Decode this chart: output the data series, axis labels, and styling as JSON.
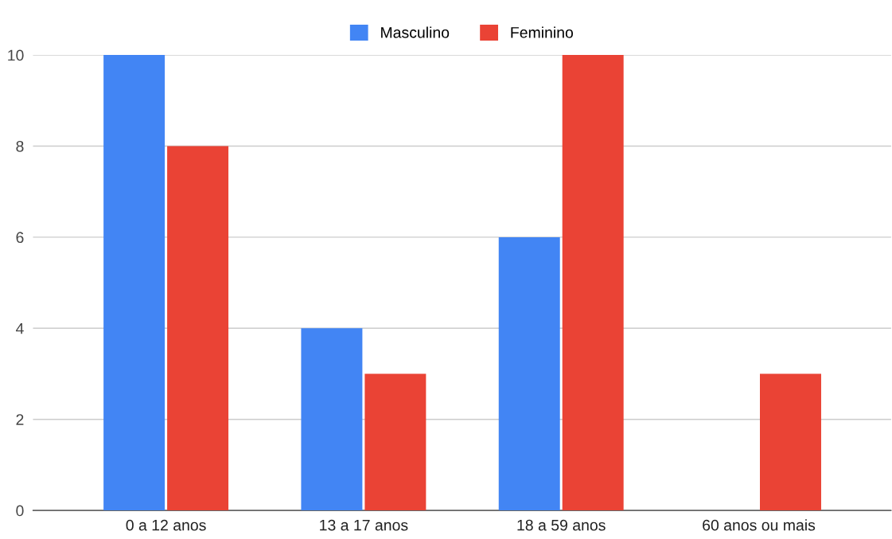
{
  "chart_data": {
    "type": "bar",
    "categories": [
      "0 a 12 anos",
      "13 a 17 anos",
      "18 a 59 anos",
      "60 anos ou mais"
    ],
    "series": [
      {
        "name": "Masculino",
        "color": "#4285f4",
        "values": [
          10,
          4,
          6,
          0
        ]
      },
      {
        "name": "Feminino",
        "color": "#ea4335",
        "values": [
          8,
          3,
          10,
          3
        ]
      }
    ],
    "ylim": [
      0,
      10
    ],
    "yticks": [
      0,
      2,
      4,
      6,
      8,
      10
    ],
    "grid": "y",
    "legend": "top"
  }
}
